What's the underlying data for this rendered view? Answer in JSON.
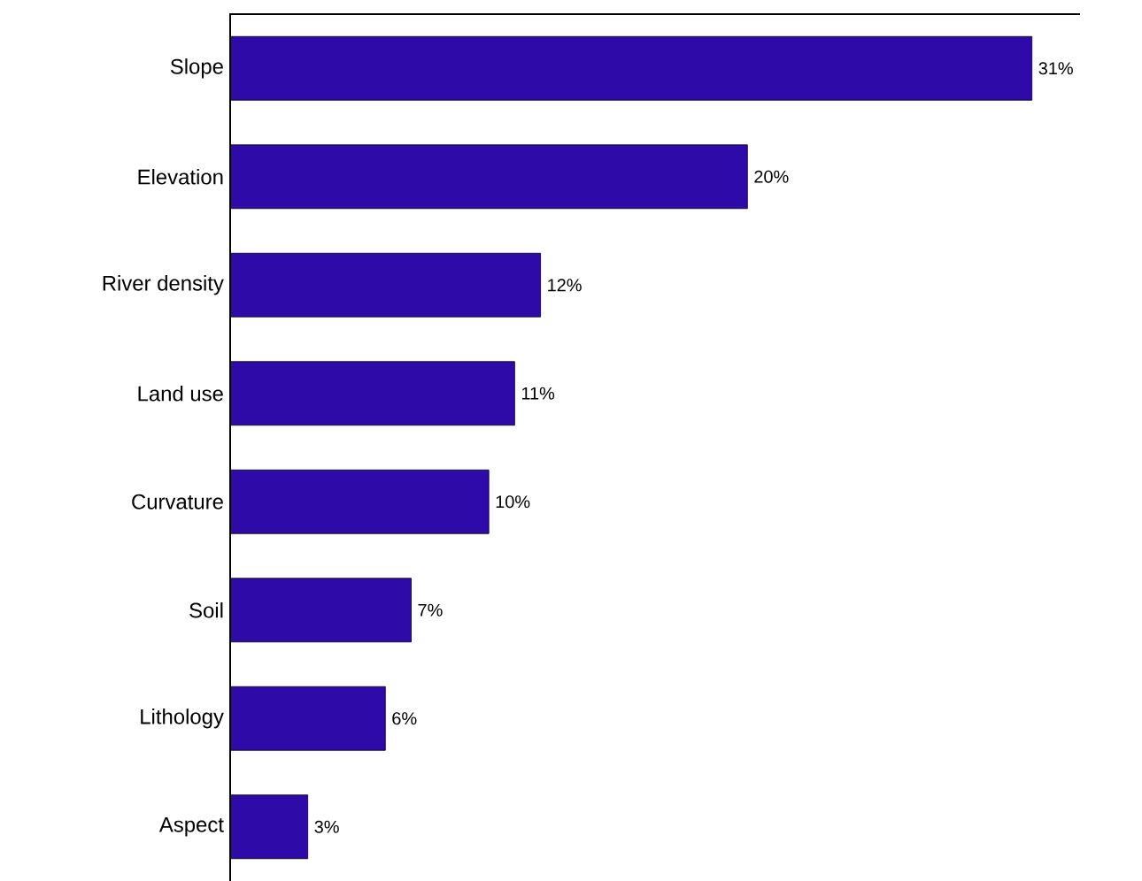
{
  "chart_data": {
    "type": "bar",
    "orientation": "horizontal",
    "categories": [
      "Slope",
      "Elevation",
      "River density",
      "Land use",
      "Curvature",
      "Soil",
      "Lithology",
      "Aspect"
    ],
    "values": [
      31,
      20,
      12,
      11,
      10,
      7,
      6,
      3
    ],
    "value_labels": [
      "31%",
      "20%",
      "12%",
      "11%",
      "10%",
      "7%",
      "6%",
      "3%"
    ],
    "color": "#2e0aa8"
  }
}
